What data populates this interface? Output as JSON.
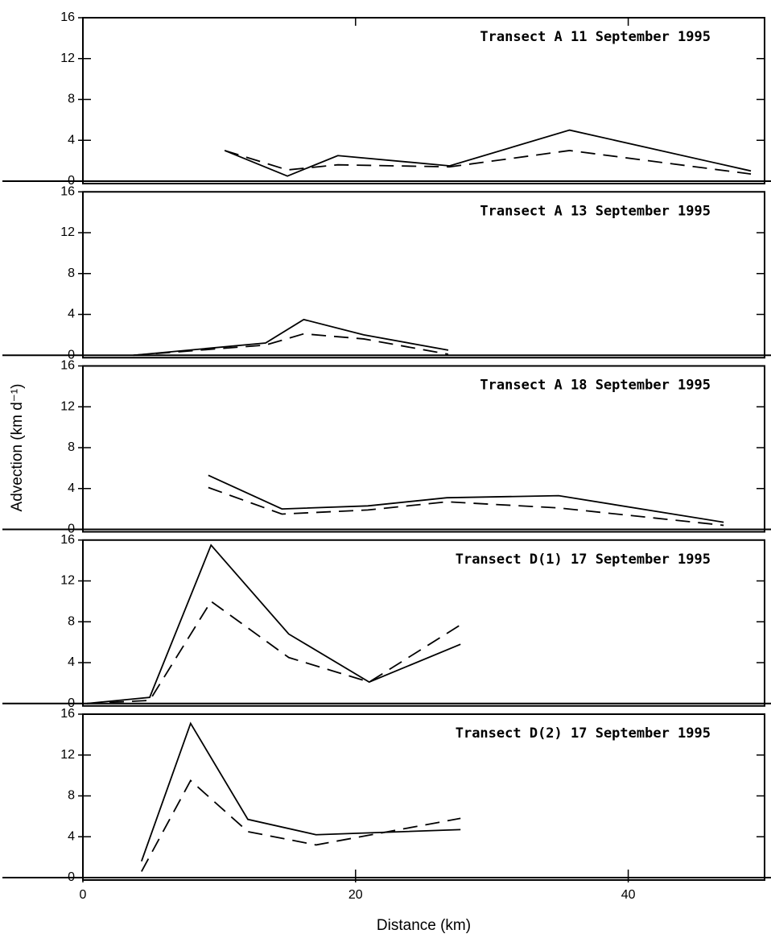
{
  "chart_data": [
    {
      "type": "line",
      "title": "Transect A 11 September 1995",
      "x": [
        10.4,
        15.0,
        18.7,
        26.9,
        35.7,
        49.0
      ],
      "series": [
        {
          "color": "#000",
          "linestyle": "solid",
          "values": [
            3,
            0.5,
            2.5,
            1.5,
            5,
            1
          ]
        },
        {
          "color": "#000",
          "linestyle": "dashed",
          "values": [
            3,
            1.1,
            1.6,
            1.4,
            3,
            0.7
          ]
        }
      ],
      "xlim": [
        0,
        50
      ],
      "ylim": [
        0,
        16
      ],
      "yticks": [
        0,
        4,
        8,
        12,
        16
      ]
    },
    {
      "type": "line",
      "title": "Transect A 13 September 1995",
      "x": [
        3.7,
        13.4,
        16.2,
        20.6,
        26.8
      ],
      "series": [
        {
          "color": "#000",
          "linestyle": "solid",
          "values": [
            0,
            1.2,
            3.5,
            2,
            0.5
          ]
        },
        {
          "color": "#000",
          "linestyle": "dashed",
          "values": [
            0,
            1.0,
            2.1,
            1.6,
            0.1
          ]
        }
      ],
      "xlim": [
        0,
        50
      ],
      "ylim": [
        0,
        16
      ],
      "yticks": [
        0,
        4,
        8,
        12,
        16
      ]
    },
    {
      "type": "line",
      "title": "Transect A 18 September 1995",
      "ylabel": "Advection (km d⁻¹)",
      "x": [
        9.2,
        14.6,
        20.9,
        26.7,
        34.9,
        47.0
      ],
      "series": [
        {
          "color": "#000",
          "linestyle": "solid",
          "values": [
            5.3,
            2,
            2.3,
            3.1,
            3.3,
            0.7
          ]
        },
        {
          "color": "#000",
          "linestyle": "dashed",
          "values": [
            4.1,
            1.5,
            1.9,
            2.7,
            2.1,
            0.4
          ]
        }
      ],
      "xlim": [
        0,
        50
      ],
      "ylim": [
        0,
        16
      ],
      "yticks": [
        0,
        4,
        8,
        12,
        16
      ]
    },
    {
      "type": "line",
      "title": "Transect D(1) 17 September 1995",
      "x": [
        0.3,
        4.9,
        9.4,
        15.1,
        21.0,
        27.7
      ],
      "series": [
        {
          "color": "#000",
          "linestyle": "solid",
          "values": [
            0,
            0.6,
            15.5,
            6.8,
            2.1,
            5.8
          ]
        },
        {
          "color": "#000",
          "linestyle": "dashed",
          "values": [
            0,
            0.3,
            10,
            4.5,
            2.1,
            7.7
          ]
        }
      ],
      "xlim": [
        0,
        50
      ],
      "ylim": [
        0,
        16
      ],
      "yticks": [
        0,
        4,
        8,
        12,
        16
      ]
    },
    {
      "type": "line",
      "title": "Transect D(2) 17 September 1995",
      "xlabel": "Distance (km)",
      "x": [
        4.3,
        7.9,
        12.1,
        17.1,
        27.7
      ],
      "series": [
        {
          "color": "#000",
          "linestyle": "solid",
          "values": [
            1.6,
            15.1,
            5.7,
            4.2,
            4.7
          ]
        },
        {
          "color": "#000",
          "linestyle": "dashed",
          "values": [
            0.6,
            9.5,
            4.5,
            3.2,
            5.8
          ]
        }
      ],
      "xlim": [
        0,
        50
      ],
      "ylim": [
        0,
        16
      ],
      "yticks": [
        0,
        4,
        8,
        12,
        16
      ],
      "xticks": [
        0,
        20,
        40
      ]
    }
  ]
}
